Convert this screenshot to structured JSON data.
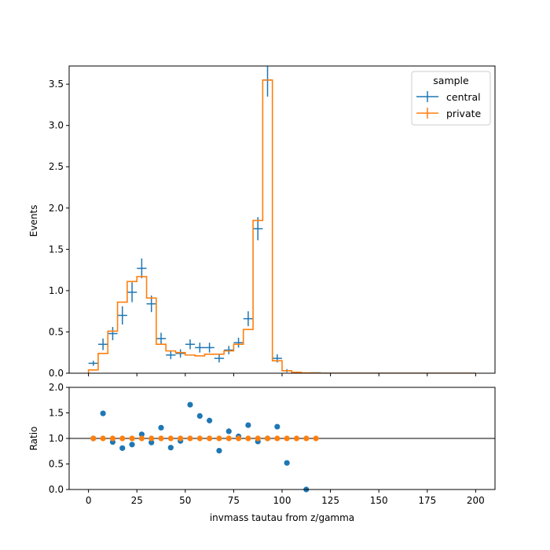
{
  "chart_data": [
    {
      "type": "histogram",
      "xlabel": "",
      "ylabel": "Events",
      "xlim": [
        -10,
        210
      ],
      "ylim": [
        0,
        3.72
      ],
      "yticks": [
        0.0,
        0.5,
        1.0,
        1.5,
        2.0,
        2.5,
        3.0,
        3.5
      ],
      "ytick_labels": [
        "0.0",
        "0.5",
        "1.0",
        "1.5",
        "2.0",
        "2.5",
        "3.0",
        "3.5"
      ],
      "bin_edges": [
        0,
        5,
        10,
        15,
        20,
        25,
        30,
        35,
        40,
        45,
        50,
        55,
        60,
        65,
        70,
        75,
        80,
        85,
        90,
        95,
        100,
        105,
        110,
        115,
        120,
        125,
        130,
        135,
        140,
        145,
        150,
        155,
        160,
        165,
        170,
        175,
        180,
        185,
        190,
        195,
        200
      ],
      "legend": {
        "title": "sample",
        "location": "upper right"
      },
      "series": [
        {
          "name": "central",
          "style": "errorbar",
          "color": "#1f77b4",
          "values": [
            0.12,
            0.35,
            0.48,
            0.7,
            0.98,
            1.27,
            0.84,
            0.42,
            0.22,
            0.24,
            0.35,
            0.31,
            0.31,
            0.18,
            0.28,
            0.37,
            0.66,
            1.75,
            3.55,
            0.18,
            0.03,
            0.01,
            0.0,
            0.005,
            0,
            0,
            0,
            0,
            0,
            0,
            0,
            0,
            0,
            0,
            0,
            0,
            0,
            0,
            0,
            0
          ],
          "errors": [
            0.03,
            0.07,
            0.08,
            0.11,
            0.12,
            0.12,
            0.1,
            0.07,
            0.05,
            0.05,
            0.06,
            0.06,
            0.06,
            0.05,
            0.05,
            0.06,
            0.09,
            0.14,
            0.2,
            0.05,
            0.02,
            0.01,
            0,
            0,
            0,
            0,
            0,
            0,
            0,
            0,
            0,
            0,
            0,
            0,
            0,
            0,
            0,
            0,
            0,
            0
          ]
        },
        {
          "name": "private",
          "style": "step",
          "color": "#ff7f0e",
          "values": [
            0.04,
            0.24,
            0.51,
            0.86,
            1.11,
            1.17,
            0.91,
            0.35,
            0.27,
            0.25,
            0.22,
            0.21,
            0.23,
            0.23,
            0.27,
            0.35,
            0.53,
            1.85,
            3.55,
            0.15,
            0.03,
            0.01,
            0.004,
            0.002,
            0,
            0,
            0,
            0,
            0,
            0,
            0,
            0,
            0,
            0,
            0,
            0,
            0,
            0,
            0,
            0
          ]
        }
      ]
    },
    {
      "type": "scatter",
      "xlabel": "invmass tautau from z/gamma",
      "ylabel": "Ratio",
      "xlim": [
        -10,
        210
      ],
      "ylim": [
        0,
        2.0
      ],
      "xticks": [
        0,
        25,
        50,
        75,
        100,
        125,
        150,
        175,
        200
      ],
      "xtick_labels": [
        "0",
        "25",
        "50",
        "75",
        "100",
        "125",
        "150",
        "175",
        "200"
      ],
      "yticks": [
        0.0,
        0.5,
        1.0,
        1.5,
        2.0
      ],
      "ytick_labels": [
        "0.0",
        "0.5",
        "1.0",
        "1.5",
        "2.0"
      ],
      "reference_line": 1.0,
      "series": [
        {
          "name": "central",
          "color": "#1f77b4",
          "x": [
            2.5,
            7.5,
            12.5,
            17.5,
            22.5,
            27.5,
            32.5,
            37.5,
            42.5,
            47.5,
            52.5,
            57.5,
            62.5,
            67.5,
            72.5,
            77.5,
            82.5,
            87.5,
            92.5,
            97.5,
            102.5,
            112.5
          ],
          "y": [
            1.0,
            1.49,
            0.93,
            0.81,
            0.88,
            1.08,
            0.92,
            1.21,
            0.82,
            0.95,
            1.66,
            1.44,
            1.35,
            0.76,
            1.14,
            1.04,
            1.26,
            0.94,
            1.0,
            1.23,
            0.52,
            0.0
          ]
        },
        {
          "name": "private",
          "color": "#ff7f0e",
          "x": [
            2.5,
            7.5,
            12.5,
            17.5,
            22.5,
            27.5,
            32.5,
            37.5,
            42.5,
            47.5,
            52.5,
            57.5,
            62.5,
            67.5,
            72.5,
            77.5,
            82.5,
            87.5,
            92.5,
            97.5,
            102.5,
            107.5,
            112.5,
            117.5
          ],
          "y": [
            1,
            1,
            1,
            1,
            1,
            1,
            1,
            1,
            1,
            1,
            1,
            1,
            1,
            1,
            1,
            1,
            1,
            1,
            1,
            1,
            1,
            1,
            1,
            1
          ]
        }
      ]
    }
  ]
}
